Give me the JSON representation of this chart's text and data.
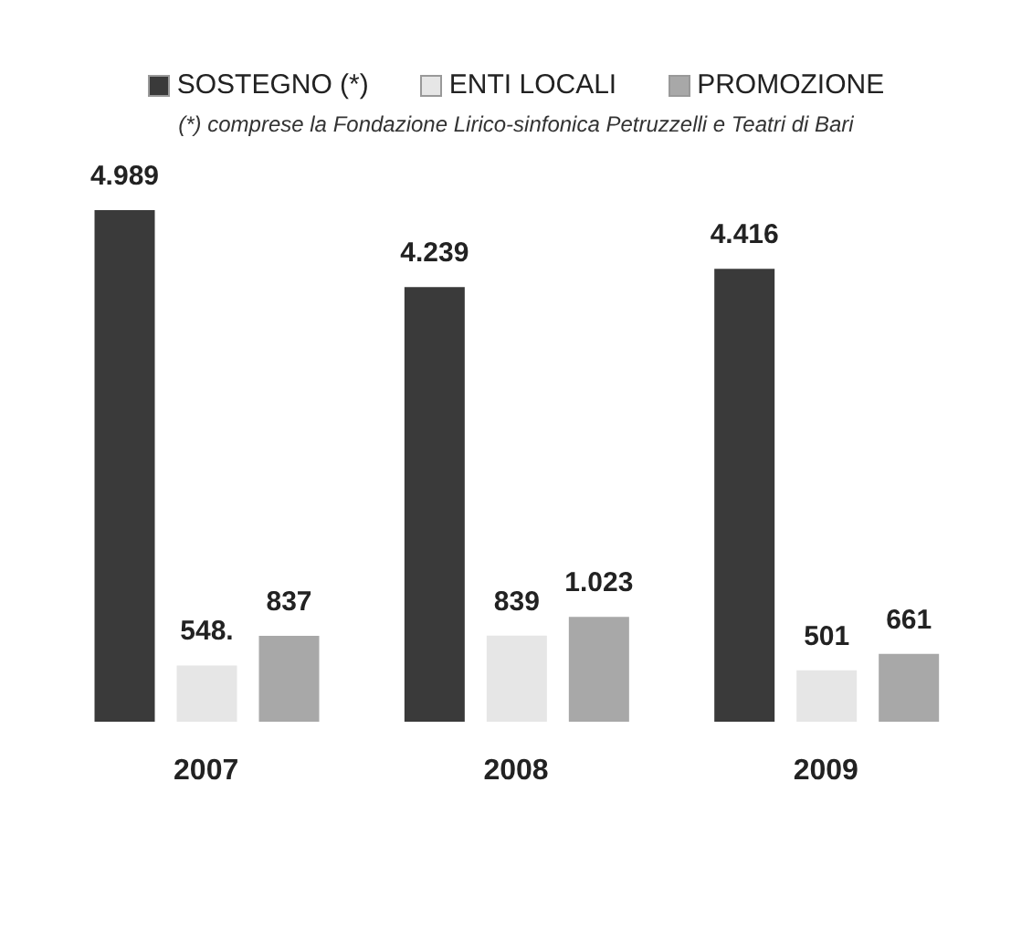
{
  "chart_data": {
    "type": "bar",
    "subtitle": "(*) comprese la Fondazione Lirico-sinfonica Petruzzelli e Teatri di Bari",
    "categories": [
      "2007",
      "2008",
      "2009"
    ],
    "series": [
      {
        "name": "SOSTEGNO (*)",
        "color": "#3a3a3a",
        "values": [
          4989,
          4239,
          4416
        ],
        "value_labels": [
          "4.989",
          "4.239",
          "4.416"
        ]
      },
      {
        "name": "ENTI LOCALI",
        "color": "#e6e6e6",
        "values": [
          548,
          839,
          501
        ],
        "value_labels": [
          "548.",
          "839",
          "501"
        ]
      },
      {
        "name": "PROMOZIONE",
        "color": "#a8a8a8",
        "values": [
          837,
          1023,
          661
        ],
        "value_labels": [
          "837",
          "1.023",
          "661"
        ]
      }
    ],
    "legend": "top",
    "grid": false
  }
}
